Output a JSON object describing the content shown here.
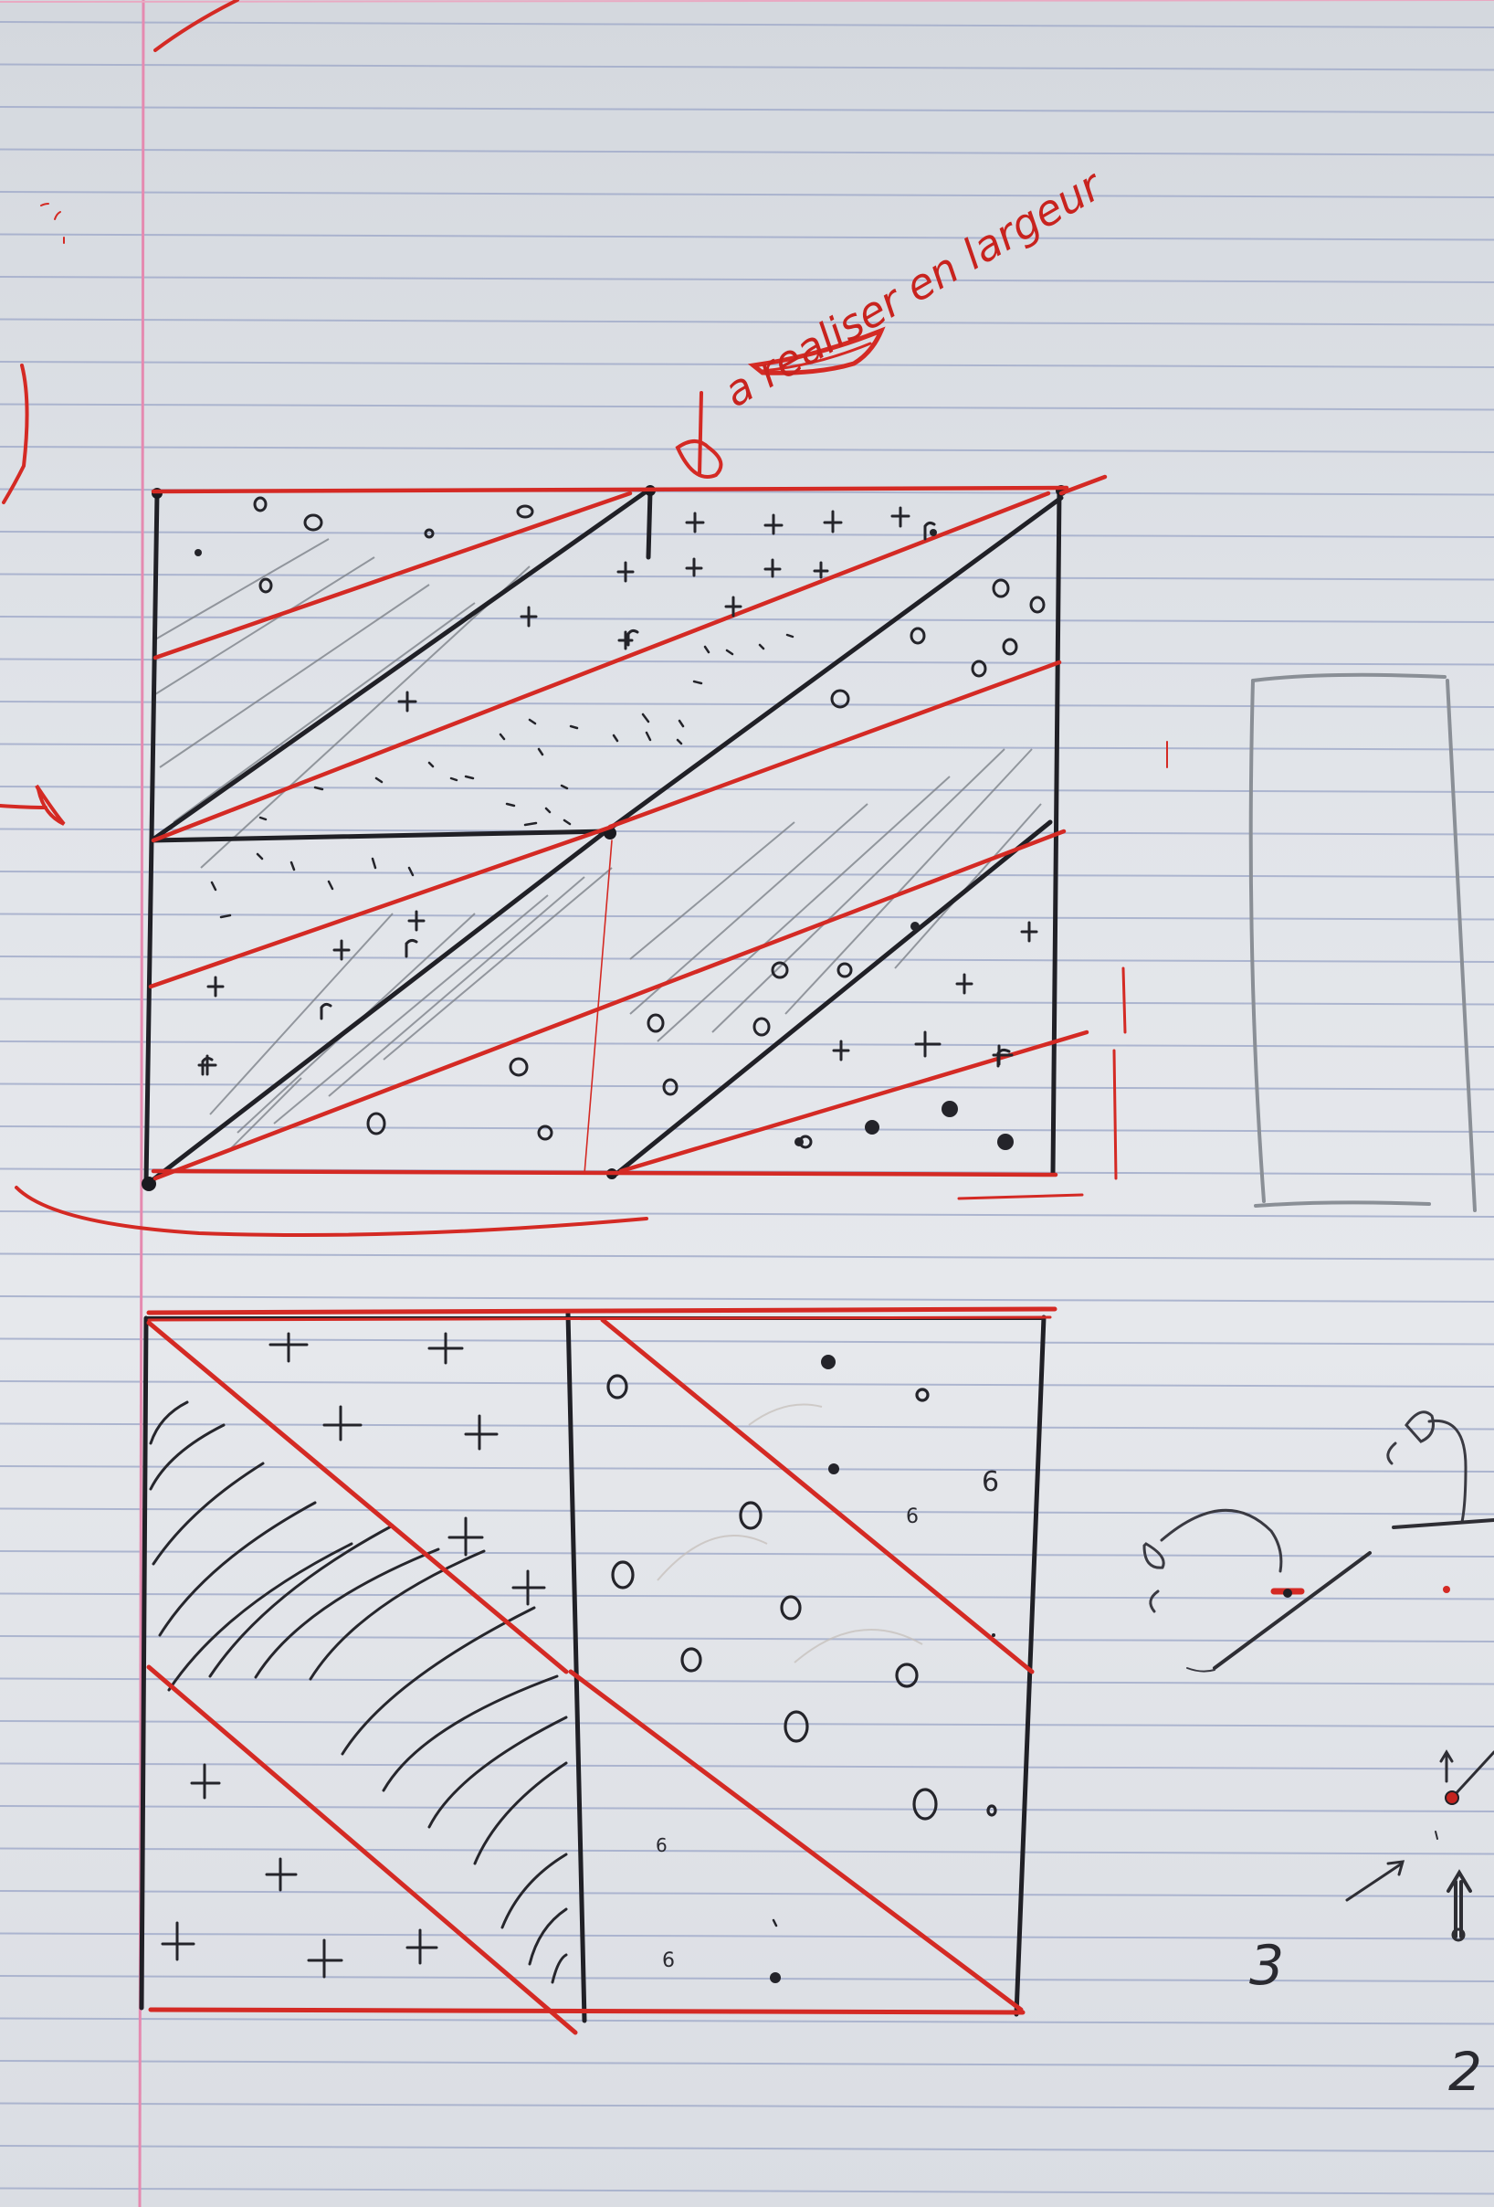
{
  "image": {
    "subject": "hand-drawn sketch on ruled notebook paper",
    "paper_color": "#e3e6ea",
    "rule_line_color": "#9ea9c9",
    "margin_line_color": "#e58ab0",
    "ink_red": "#d42a24",
    "ink_black": "#1f1f25",
    "pencil_grey": "#8a8f96"
  },
  "annotations": {
    "red_note": "a realiser en largeur",
    "numbers": [
      "2",
      "3",
      "6",
      "6",
      "6",
      "6"
    ]
  }
}
